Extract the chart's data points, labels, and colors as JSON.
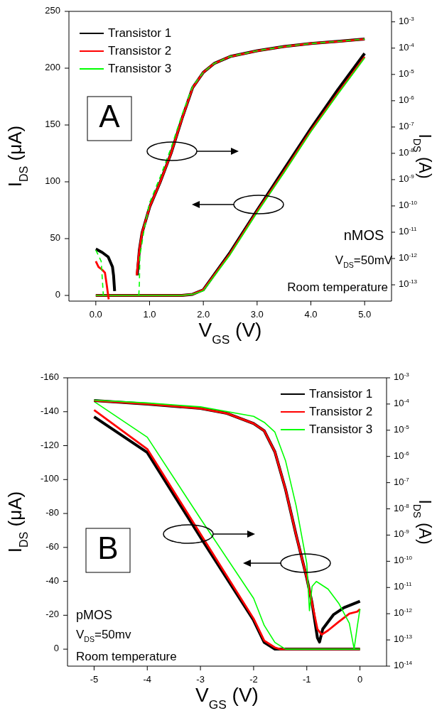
{
  "chart_data": [
    {
      "type": "line",
      "xlabel": "V$_{GS}$ (V)",
      "ylabel": "I$_{DS}$ (μA)",
      "y2label": "I$_{DS}$ (A)",
      "xlim": [
        -0.5,
        5.5
      ],
      "xticks": [
        {
          "value": 0,
          "label": "0.0"
        },
        {
          "value": 1,
          "label": "1.0"
        },
        {
          "value": 2,
          "label": "2.0"
        },
        {
          "value": 3,
          "label": "3.0"
        },
        {
          "value": 4,
          "label": "4.0"
        },
        {
          "value": 5,
          "label": "5.0"
        }
      ],
      "ylim": [
        -5,
        250
      ],
      "yticks": [
        0,
        50,
        100,
        150,
        200,
        250
      ],
      "y2lim": [
        2.4e-14,
        0.0025
      ],
      "y2ticks": [
        {
          "value": 0.001,
          "label": "10$^{-3}$"
        },
        {
          "value": 0.0001,
          "label": "10$^{-4}$"
        },
        {
          "value": 1e-05,
          "label": "10$^{-5}$"
        },
        {
          "value": 1e-06,
          "label": "10$^{-6}$"
        },
        {
          "value": 1e-07,
          "label": "10$^{-7}$"
        },
        {
          "value": 1e-08,
          "label": "10$^{-8}$"
        },
        {
          "value": 1e-09,
          "label": "10$^{-9}$"
        },
        {
          "value": 1e-10,
          "label": "10$^{-10}$"
        },
        {
          "value": 1e-11,
          "label": "10$^{-11}$"
        },
        {
          "value": 1e-12,
          "label": "10$^{-12}$"
        },
        {
          "value": 1e-13,
          "label": "10$^{-13}$"
        }
      ],
      "log": "y2",
      "legend": "top left",
      "grid": false,
      "marker": "none",
      "annotations": [
        "A",
        "nMOS",
        "V$_{DS}$=50mV",
        "Room temperature"
      ],
      "series": [
        {
          "name": "Transistor 1",
          "color": "#000000",
          "axis": "y",
          "x": [
            0,
            1.6,
            1.8,
            2.0,
            2.5,
            3.0,
            3.5,
            4.0,
            4.5,
            5.0
          ],
          "values": [
            0,
            0,
            1,
            5,
            38,
            75,
            111,
            147,
            181,
            213
          ]
        },
        {
          "name": "Transistor 2",
          "color": "#ff0000",
          "axis": "y",
          "x": [
            0,
            1.6,
            1.8,
            2.0,
            2.5,
            3.0,
            3.5,
            4.0,
            4.5,
            5.0
          ],
          "values": [
            0,
            0,
            1,
            5,
            37,
            74,
            109,
            145,
            178,
            210
          ]
        },
        {
          "name": "Transistor 3",
          "color": "#00ff00",
          "axis": "y",
          "x": [
            0,
            1.6,
            1.8,
            2.0,
            2.5,
            3.0,
            3.5,
            4.0,
            4.5,
            5.0
          ],
          "values": [
            0,
            0,
            1,
            4,
            36,
            73,
            108,
            144,
            177,
            209
          ]
        },
        {
          "color": "#000000",
          "axis": "y2",
          "x": [
            0,
            0.12,
            0.23,
            0.31,
            0.33,
            0.35,
            0.5,
            0.77,
            0.81,
            0.86,
            1.0,
            1.2,
            1.4,
            1.6,
            1.8,
            2.0,
            2.2,
            2.5,
            3.0,
            3.5,
            4.0,
            4.5,
            5.0
          ],
          "values": [
            2.3e-12,
            1.7e-12,
            1.15e-12,
            4.8e-13,
            2.3e-13,
            5.8e-14,
            null,
            2.3e-13,
            2.1e-12,
            9.5e-12,
            8.9e-11,
            8.3e-10,
            1e-08,
            2e-07,
            3.1e-06,
            1.2e-05,
            2.6e-05,
            4.8e-05,
            7.9e-05,
            0.000115,
            0.00015,
            0.00018,
            0.00022
          ]
        },
        {
          "color": "#ff0000",
          "axis": "y2",
          "x": [
            0,
            0.05,
            0.12,
            0.17,
            0.2,
            0.24,
            0.5,
            0.76,
            0.81,
            0.86,
            1.0,
            1.2,
            1.4,
            1.6,
            1.8,
            2.0,
            2.2,
            2.5,
            3.0,
            3.5,
            4.0,
            4.5,
            5.0
          ],
          "values": [
            7.9e-13,
            4.8e-13,
            3.7e-13,
            2.9e-13,
            1.1e-13,
            2.8e-14,
            null,
            2.3e-13,
            2.1e-12,
            9.5e-12,
            8.9e-11,
            8.3e-10,
            1e-08,
            2e-07,
            3.1e-06,
            1.2e-05,
            2.6e-05,
            4.8e-05,
            7.9e-05,
            0.000115,
            0.00015,
            0.00018,
            0.00022
          ]
        },
        {
          "color": "#00ff00",
          "axis": "y2",
          "line_style": "dashed",
          "x": [
            0,
            0.1,
            0.14,
            0.5,
            0.8,
            0.81,
            0.82,
            0.9,
            1.0,
            1.2,
            1.4,
            1.6,
            1.8,
            2.0,
            2.2,
            2.5,
            3.0,
            3.5,
            4.0,
            4.5,
            5.0
          ],
          "values": [
            2.1e-12,
            7.9e-13,
            4e-14,
            null,
            4e-14,
            1.1e-13,
            1.3e-12,
            1.3e-11,
            1.3e-10,
            1.3e-09,
            1.6e-08,
            2.8e-07,
            3.5e-06,
            1.2e-05,
            2.6e-05,
            4.8e-05,
            7.9e-05,
            0.000115,
            0.00015,
            0.00018,
            0.00022
          ]
        }
      ]
    },
    {
      "type": "line",
      "xlabel": "V$_{GS}$ (V)",
      "ylabel": "I$_{DS}$ (μA)",
      "y2label": "I$_{DS}$ (A)",
      "xlim": [
        -5.5,
        0.5
      ],
      "xticks": [
        -5,
        -4,
        -3,
        -2,
        -1,
        0
      ],
      "ylim": [
        10,
        -160
      ],
      "yticks": [
        0,
        -20,
        -40,
        -60,
        -80,
        -100,
        -120,
        -140,
        -160
      ],
      "y2lim": [
        1e-14,
        0.001
      ],
      "y2ticks": [
        {
          "value": 0.001,
          "label": "10$^{-3}$"
        },
        {
          "value": 0.0001,
          "label": "10$^{-4}$"
        },
        {
          "value": 1e-05,
          "label": "10$^{-5}$"
        },
        {
          "value": 1e-06,
          "label": "10$^{-6}$"
        },
        {
          "value": 1e-07,
          "label": "10$^{-7}$"
        },
        {
          "value": 1e-08,
          "label": "10$^{-8}$"
        },
        {
          "value": 1e-09,
          "label": "10$^{-9}$"
        },
        {
          "value": 1e-10,
          "label": "10$^{-10}$"
        },
        {
          "value": 1e-11,
          "label": "10$^{-11}$"
        },
        {
          "value": 1e-12,
          "label": "10$^{-12}$"
        },
        {
          "value": 1e-13,
          "label": "10$^{-13}$"
        },
        {
          "value": 1e-14,
          "label": "10$^{-14}$"
        }
      ],
      "log": "y2",
      "legend": "top right",
      "grid": false,
      "marker": "none",
      "annotations": [
        "B",
        "pMOS",
        "V$_{DS}$=50mv",
        "Room temperature"
      ],
      "series": [
        {
          "name": "Transistor 1",
          "color": "#000000",
          "axis": "y",
          "x": [
            -5,
            -4,
            -3,
            -2,
            -1.8,
            -1.6,
            -1.5,
            0
          ],
          "values": [
            -137,
            -116,
            -66,
            -17,
            -4,
            0,
            0,
            0
          ]
        },
        {
          "name": "Transistor 2",
          "color": "#ff0000",
          "axis": "y",
          "x": [
            -5,
            -4,
            -3,
            -2,
            -1.8,
            -1.6,
            -1.5,
            0
          ],
          "values": [
            -141,
            -118,
            -68,
            -18,
            -5,
            -1,
            0,
            0
          ]
        },
        {
          "name": "Transistor 3",
          "color": "#00ff00",
          "axis": "y",
          "x": [
            -5,
            -4,
            -3,
            -2,
            -1.8,
            -1.6,
            -1.4,
            -1.3,
            0
          ],
          "values": [
            -146,
            -125,
            -77,
            -30,
            -14,
            -4,
            0,
            0,
            0
          ]
        },
        {
          "color": "#000000",
          "axis": "y2",
          "x": [
            -5,
            -4,
            -3,
            -2.5,
            -2,
            -1.8,
            -1.6,
            -1.4,
            -1.2,
            -1.0,
            -0.9,
            -0.8,
            -0.76,
            -0.7,
            -0.5,
            -0.3,
            0
          ],
          "values": [
            0.000135,
            0.0001,
            6.8e-05,
            4.4e-05,
            1.8e-05,
            9.5e-06,
            1.5e-06,
            5.6e-08,
            1e-09,
            2.3e-11,
            2.5e-12,
            1.2e-13,
            8.3e-14,
            2.6e-13,
            9.1e-13,
            1.7e-12,
            3e-12
          ]
        },
        {
          "color": "#ff0000",
          "axis": "y2",
          "x": [
            -5,
            -4,
            -3,
            -2.5,
            -2,
            -1.8,
            -1.6,
            -1.4,
            -1.2,
            -1.0,
            -0.9,
            -0.8,
            -0.72,
            -0.6,
            -0.4,
            -0.2,
            -0.05,
            0
          ],
          "values": [
            0.000135,
            0.0001,
            6.8e-05,
            4.4e-05,
            1.8e-05,
            9.5e-06,
            1.5e-06,
            5.6e-08,
            1e-09,
            2.3e-11,
            2.5e-12,
            2.6e-13,
            1.6e-13,
            2.3e-13,
            4.9e-13,
            1e-12,
            1.2e-12,
            1.5e-12
          ]
        },
        {
          "color": "#00ff00",
          "axis": "y2",
          "x": [
            -5,
            -4,
            -3,
            -2,
            -1.8,
            -1.6,
            -1.4,
            -1.2,
            -1.0,
            -0.95,
            -0.9,
            -0.82,
            -0.6,
            -0.4,
            -0.2,
            -0.11,
            -0.05,
            0
          ],
          "values": [
            0.00014,
            0.00011,
            7.8e-05,
            3.4e-05,
            2e-05,
            8.5e-06,
            6.9e-07,
            1.3e-08,
            8.3e-11,
            1.3e-12,
            1.1e-11,
            1.7e-11,
            8.7e-12,
            2.5e-12,
            4.3e-13,
            4.5e-14,
            3.3e-13,
            1.5e-12
          ]
        }
      ]
    }
  ]
}
